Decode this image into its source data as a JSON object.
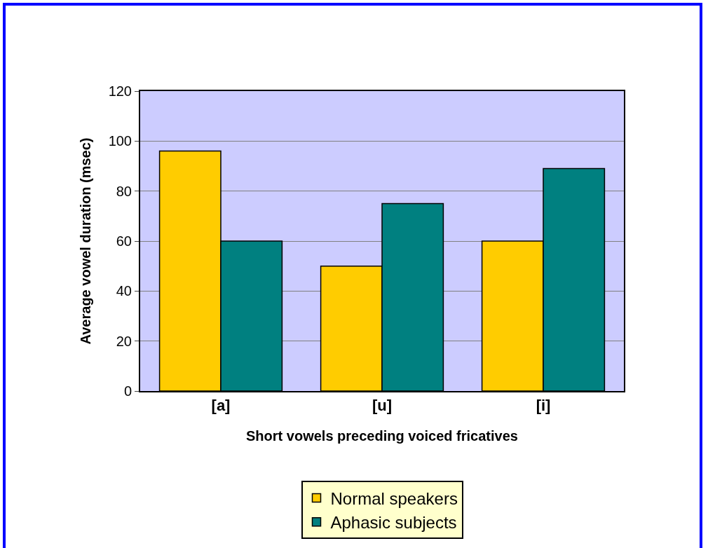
{
  "chart_data": {
    "type": "bar",
    "xlabel": "Short vowels preceding voiced fricatives",
    "ylabel": "Average vowel duration (msec)",
    "categories": [
      "[a]",
      "[u]",
      "[i]"
    ],
    "series": [
      {
        "name": "Normal speakers",
        "color": "#ffcc00",
        "values": [
          96,
          50,
          60
        ]
      },
      {
        "name": "Aphasic subjects",
        "color": "#008080",
        "values": [
          60,
          75,
          89
        ]
      }
    ],
    "ylim": [
      0,
      120
    ],
    "yticks": [
      0,
      20,
      40,
      60,
      80,
      100,
      120
    ],
    "grid": "y",
    "legend": "bottom"
  }
}
